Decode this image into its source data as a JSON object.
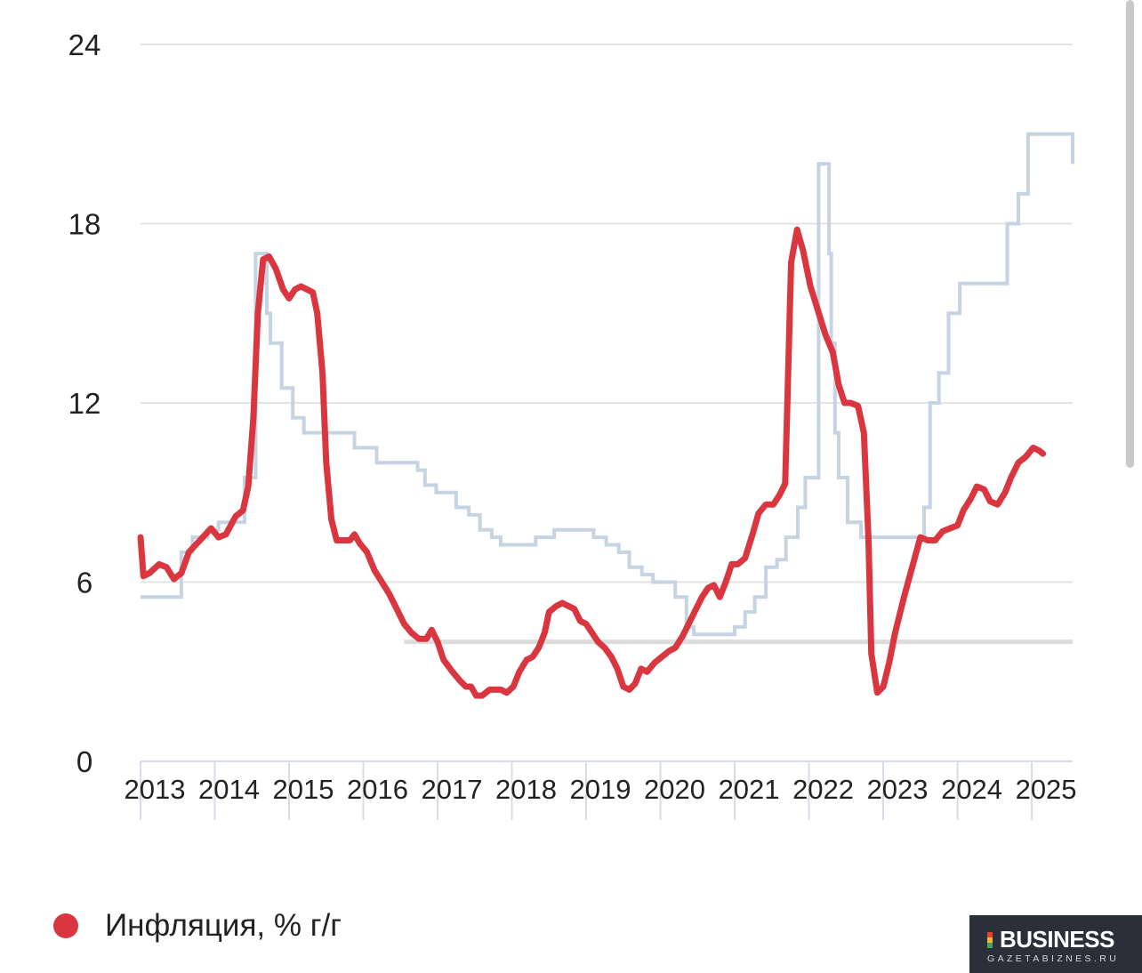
{
  "chart_data": {
    "type": "line",
    "ylim": [
      0,
      24
    ],
    "yticks": [
      "0",
      "6",
      "12",
      "18",
      "24"
    ],
    "xlim": [
      2013.0,
      2025.55
    ],
    "xticks": [
      "2013",
      "2014",
      "2015",
      "2016",
      "2017",
      "2018",
      "2019",
      "2020",
      "2021",
      "2022",
      "2023",
      "2024",
      "2025"
    ],
    "grid": true,
    "legend": {
      "position": "bottom-left",
      "entries": [
        {
          "label": "Инфляция, % г/г",
          "color": "#d93640"
        }
      ]
    },
    "target_line": {
      "value": 4,
      "x_start": 2016.55,
      "x_end": 2025.55,
      "color": "#dcdcdc"
    },
    "series": [
      {
        "name": "Инфляция, % г/г",
        "color": "#d93640",
        "points": [
          [
            2013.0,
            7.5
          ],
          [
            2013.04,
            6.2
          ],
          [
            2013.12,
            6.3
          ],
          [
            2013.25,
            6.6
          ],
          [
            2013.35,
            6.5
          ],
          [
            2013.45,
            6.1
          ],
          [
            2013.55,
            6.3
          ],
          [
            2013.65,
            7.0
          ],
          [
            2013.8,
            7.4
          ],
          [
            2013.95,
            7.8
          ],
          [
            2014.05,
            7.5
          ],
          [
            2014.15,
            7.6
          ],
          [
            2014.28,
            8.2
          ],
          [
            2014.38,
            8.4
          ],
          [
            2014.45,
            9.2
          ],
          [
            2014.52,
            11.5
          ],
          [
            2014.58,
            15.0
          ],
          [
            2014.65,
            16.8
          ],
          [
            2014.73,
            16.9
          ],
          [
            2014.82,
            16.5
          ],
          [
            2014.92,
            15.8
          ],
          [
            2015.0,
            15.5
          ],
          [
            2015.08,
            15.8
          ],
          [
            2015.16,
            15.9
          ],
          [
            2015.24,
            15.8
          ],
          [
            2015.32,
            15.7
          ],
          [
            2015.38,
            15.0
          ],
          [
            2015.45,
            13.0
          ],
          [
            2015.5,
            10.0
          ],
          [
            2015.57,
            8.1
          ],
          [
            2015.64,
            7.4
          ],
          [
            2015.72,
            7.4
          ],
          [
            2015.82,
            7.4
          ],
          [
            2015.88,
            7.6
          ],
          [
            2015.95,
            7.3
          ],
          [
            2016.05,
            7.0
          ],
          [
            2016.15,
            6.4
          ],
          [
            2016.25,
            6.0
          ],
          [
            2016.35,
            5.6
          ],
          [
            2016.45,
            5.1
          ],
          [
            2016.55,
            4.6
          ],
          [
            2016.65,
            4.3
          ],
          [
            2016.75,
            4.1
          ],
          [
            2016.85,
            4.1
          ],
          [
            2016.92,
            4.4
          ],
          [
            2017.0,
            4.0
          ],
          [
            2017.08,
            3.4
          ],
          [
            2017.2,
            3.0
          ],
          [
            2017.3,
            2.7
          ],
          [
            2017.38,
            2.5
          ],
          [
            2017.45,
            2.5
          ],
          [
            2017.52,
            2.2
          ],
          [
            2017.6,
            2.2
          ],
          [
            2017.7,
            2.4
          ],
          [
            2017.85,
            2.4
          ],
          [
            2017.93,
            2.3
          ],
          [
            2018.02,
            2.5
          ],
          [
            2018.1,
            3.0
          ],
          [
            2018.2,
            3.4
          ],
          [
            2018.28,
            3.5
          ],
          [
            2018.36,
            3.8
          ],
          [
            2018.44,
            4.3
          ],
          [
            2018.5,
            5.0
          ],
          [
            2018.6,
            5.2
          ],
          [
            2018.68,
            5.3
          ],
          [
            2018.76,
            5.2
          ],
          [
            2018.84,
            5.1
          ],
          [
            2018.92,
            4.7
          ],
          [
            2019.0,
            4.6
          ],
          [
            2019.08,
            4.3
          ],
          [
            2019.16,
            4.0
          ],
          [
            2019.25,
            3.8
          ],
          [
            2019.34,
            3.5
          ],
          [
            2019.42,
            3.1
          ],
          [
            2019.5,
            2.5
          ],
          [
            2019.58,
            2.4
          ],
          [
            2019.66,
            2.6
          ],
          [
            2019.74,
            3.1
          ],
          [
            2019.82,
            3.0
          ],
          [
            2019.92,
            3.3
          ],
          [
            2020.02,
            3.5
          ],
          [
            2020.12,
            3.7
          ],
          [
            2020.2,
            3.8
          ],
          [
            2020.3,
            4.2
          ],
          [
            2020.4,
            4.7
          ],
          [
            2020.48,
            5.1
          ],
          [
            2020.56,
            5.5
          ],
          [
            2020.64,
            5.8
          ],
          [
            2020.72,
            5.9
          ],
          [
            2020.8,
            5.5
          ],
          [
            2020.88,
            6.0
          ],
          [
            2020.96,
            6.6
          ],
          [
            2021.04,
            6.6
          ],
          [
            2021.14,
            6.8
          ],
          [
            2021.24,
            7.6
          ],
          [
            2021.32,
            8.3
          ],
          [
            2021.42,
            8.6
          ],
          [
            2021.52,
            8.6
          ],
          [
            2021.6,
            8.9
          ],
          [
            2021.68,
            9.3
          ],
          [
            2021.76,
            16.7
          ],
          [
            2021.84,
            17.8
          ],
          [
            2021.92,
            17.1
          ],
          [
            2022.02,
            15.9
          ],
          [
            2022.12,
            15.1
          ],
          [
            2022.22,
            14.3
          ],
          [
            2022.32,
            13.7
          ],
          [
            2022.4,
            12.6
          ],
          [
            2022.48,
            12.0
          ],
          [
            2022.56,
            12.0
          ],
          [
            2022.66,
            11.9
          ],
          [
            2022.74,
            11.0
          ],
          [
            2022.8,
            7.5
          ],
          [
            2022.84,
            3.6
          ],
          [
            2022.92,
            2.3
          ],
          [
            2023.0,
            2.5
          ],
          [
            2023.08,
            3.3
          ],
          [
            2023.16,
            4.3
          ],
          [
            2023.28,
            5.5
          ],
          [
            2023.4,
            6.6
          ],
          [
            2023.5,
            7.5
          ],
          [
            2023.6,
            7.4
          ],
          [
            2023.7,
            7.4
          ],
          [
            2023.8,
            7.7
          ],
          [
            2023.9,
            7.8
          ],
          [
            2024.0,
            7.9
          ],
          [
            2024.08,
            8.4
          ],
          [
            2024.18,
            8.8
          ],
          [
            2024.26,
            9.2
          ],
          [
            2024.36,
            9.1
          ],
          [
            2024.44,
            8.7
          ],
          [
            2024.54,
            8.6
          ],
          [
            2024.64,
            9.0
          ],
          [
            2024.72,
            9.5
          ],
          [
            2024.82,
            10.0
          ],
          [
            2024.92,
            10.2
          ],
          [
            2025.02,
            10.5
          ],
          [
            2025.1,
            10.4
          ],
          [
            2025.15,
            10.3
          ]
        ]
      },
      {
        "name": "",
        "color": "#c5d3e3",
        "shape": "step",
        "points": [
          [
            2013.0,
            5.5
          ],
          [
            2013.55,
            5.5
          ],
          [
            2013.55,
            7.0
          ],
          [
            2013.7,
            7.0
          ],
          [
            2013.7,
            7.5
          ],
          [
            2013.9,
            7.5
          ],
          [
            2013.9,
            7.75
          ],
          [
            2014.05,
            7.75
          ],
          [
            2014.05,
            8.0
          ],
          [
            2014.4,
            8.0
          ],
          [
            2014.4,
            9.5
          ],
          [
            2014.55,
            9.5
          ],
          [
            2014.55,
            17.0
          ],
          [
            2014.7,
            17.0
          ],
          [
            2014.7,
            15.0
          ],
          [
            2014.75,
            15.0
          ],
          [
            2014.75,
            14.0
          ],
          [
            2014.9,
            14.0
          ],
          [
            2014.9,
            12.5
          ],
          [
            2015.05,
            12.5
          ],
          [
            2015.05,
            11.5
          ],
          [
            2015.2,
            11.5
          ],
          [
            2015.2,
            11.0
          ],
          [
            2015.88,
            11.0
          ],
          [
            2015.88,
            10.5
          ],
          [
            2016.18,
            10.5
          ],
          [
            2016.18,
            10.0
          ],
          [
            2016.73,
            10.0
          ],
          [
            2016.73,
            9.75
          ],
          [
            2016.83,
            9.75
          ],
          [
            2016.83,
            9.25
          ],
          [
            2016.98,
            9.25
          ],
          [
            2016.98,
            9.0
          ],
          [
            2017.25,
            9.0
          ],
          [
            2017.25,
            8.5
          ],
          [
            2017.42,
            8.5
          ],
          [
            2017.42,
            8.25
          ],
          [
            2017.57,
            8.25
          ],
          [
            2017.57,
            7.75
          ],
          [
            2017.73,
            7.75
          ],
          [
            2017.73,
            7.5
          ],
          [
            2017.85,
            7.5
          ],
          [
            2017.85,
            7.25
          ],
          [
            2018.32,
            7.25
          ],
          [
            2018.32,
            7.5
          ],
          [
            2018.57,
            7.5
          ],
          [
            2018.57,
            7.75
          ],
          [
            2019.1,
            7.75
          ],
          [
            2019.1,
            7.5
          ],
          [
            2019.27,
            7.5
          ],
          [
            2019.27,
            7.25
          ],
          [
            2019.44,
            7.25
          ],
          [
            2019.44,
            7.0
          ],
          [
            2019.58,
            7.0
          ],
          [
            2019.58,
            6.5
          ],
          [
            2019.75,
            6.5
          ],
          [
            2019.75,
            6.25
          ],
          [
            2019.9,
            6.25
          ],
          [
            2019.9,
            6.0
          ],
          [
            2020.2,
            6.0
          ],
          [
            2020.2,
            5.5
          ],
          [
            2020.35,
            5.5
          ],
          [
            2020.35,
            4.5
          ],
          [
            2020.45,
            4.5
          ],
          [
            2020.45,
            4.25
          ],
          [
            2021.0,
            4.25
          ],
          [
            2021.0,
            4.5
          ],
          [
            2021.14,
            4.5
          ],
          [
            2021.14,
            5.0
          ],
          [
            2021.27,
            5.0
          ],
          [
            2021.27,
            5.5
          ],
          [
            2021.42,
            5.5
          ],
          [
            2021.42,
            6.5
          ],
          [
            2021.57,
            6.5
          ],
          [
            2021.57,
            6.75
          ],
          [
            2021.69,
            6.75
          ],
          [
            2021.69,
            7.5
          ],
          [
            2021.85,
            7.5
          ],
          [
            2021.85,
            8.5
          ],
          [
            2021.95,
            8.5
          ],
          [
            2021.95,
            9.5
          ],
          [
            2022.13,
            9.5
          ],
          [
            2022.13,
            20.0
          ],
          [
            2022.27,
            20.0
          ],
          [
            2022.27,
            17.0
          ],
          [
            2022.3,
            17.0
          ],
          [
            2022.3,
            14.0
          ],
          [
            2022.35,
            14.0
          ],
          [
            2022.35,
            11.0
          ],
          [
            2022.4,
            11.0
          ],
          [
            2022.4,
            9.5
          ],
          [
            2022.52,
            9.5
          ],
          [
            2022.52,
            8.0
          ],
          [
            2022.7,
            8.0
          ],
          [
            2022.7,
            7.5
          ],
          [
            2023.55,
            7.5
          ],
          [
            2023.55,
            8.5
          ],
          [
            2023.63,
            8.5
          ],
          [
            2023.63,
            12.0
          ],
          [
            2023.75,
            12.0
          ],
          [
            2023.75,
            13.0
          ],
          [
            2023.88,
            13.0
          ],
          [
            2023.88,
            15.0
          ],
          [
            2024.03,
            15.0
          ],
          [
            2024.03,
            16.0
          ],
          [
            2024.67,
            16.0
          ],
          [
            2024.67,
            18.0
          ],
          [
            2024.82,
            18.0
          ],
          [
            2024.82,
            19.0
          ],
          [
            2024.95,
            19.0
          ],
          [
            2024.95,
            21.0
          ],
          [
            2025.55,
            21.0
          ],
          [
            2025.55,
            20.0
          ]
        ]
      }
    ]
  },
  "branding": {
    "logo_title": "BUSINESS",
    "logo_subtitle": "GAZETABIZNES.RU"
  }
}
